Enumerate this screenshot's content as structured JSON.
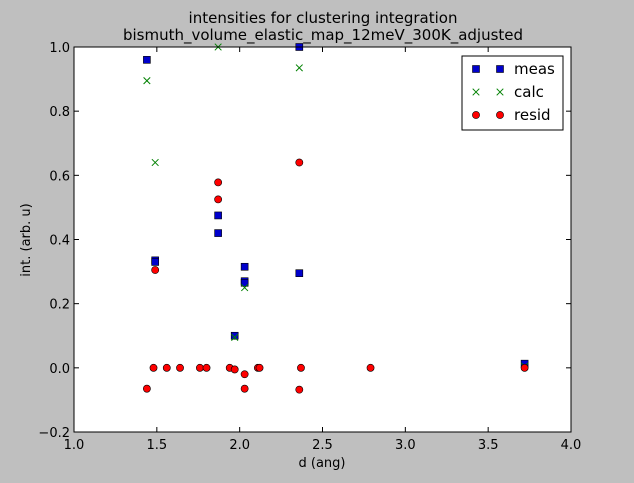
{
  "chart_data": {
    "type": "scatter",
    "title": "intensities for clustering integration",
    "subtitle": "bismuth_volume_elastic_map_12meV_300K_adjusted",
    "xlabel": "d (ang)",
    "ylabel": "int. (arb. u)",
    "xlim": [
      1.0,
      4.0
    ],
    "ylim": [
      -0.2,
      1.0
    ],
    "xticks": [
      "1.0",
      "1.5",
      "2.0",
      "2.5",
      "3.0",
      "3.5",
      "4.0"
    ],
    "yticks": [
      "−0.2",
      "0.0",
      "0.2",
      "0.4",
      "0.6",
      "0.8",
      "1.0"
    ],
    "xtick_values": [
      1.0,
      1.5,
      2.0,
      2.5,
      3.0,
      3.5,
      4.0
    ],
    "ytick_values": [
      -0.2,
      0.0,
      0.2,
      0.4,
      0.6,
      0.8,
      1.0
    ],
    "grid": false,
    "legend_position": "top-right",
    "series": [
      {
        "name": "meas",
        "marker": "square",
        "color": "#0000cc",
        "points": [
          [
            1.44,
            0.96
          ],
          [
            1.49,
            0.335
          ],
          [
            1.49,
            0.33
          ],
          [
            1.87,
            0.475
          ],
          [
            1.87,
            0.42
          ],
          [
            1.97,
            0.1
          ],
          [
            2.03,
            0.315
          ],
          [
            2.03,
            0.27
          ],
          [
            2.03,
            0.265
          ],
          [
            2.36,
            1.0
          ],
          [
            2.36,
            0.295
          ],
          [
            3.72,
            0.013
          ]
        ]
      },
      {
        "name": "calc",
        "marker": "x",
        "color": "#008000",
        "points": [
          [
            1.44,
            0.895
          ],
          [
            1.49,
            0.64
          ],
          [
            1.87,
            1.0
          ],
          [
            1.97,
            0.095
          ],
          [
            2.03,
            0.25
          ],
          [
            2.36,
            0.935
          ],
          [
            3.72,
            0.005
          ]
        ]
      },
      {
        "name": "resid",
        "marker": "circle",
        "color": "#ff0000",
        "points": [
          [
            1.44,
            -0.065
          ],
          [
            1.48,
            0.0
          ],
          [
            1.49,
            0.305
          ],
          [
            1.56,
            0.0
          ],
          [
            1.64,
            0.0
          ],
          [
            1.76,
            0.0
          ],
          [
            1.8,
            0.0
          ],
          [
            1.87,
            0.578
          ],
          [
            1.87,
            0.525
          ],
          [
            1.94,
            0.0
          ],
          [
            1.97,
            -0.005
          ],
          [
            2.03,
            -0.02
          ],
          [
            2.03,
            -0.065
          ],
          [
            2.11,
            0.0
          ],
          [
            2.12,
            0.0
          ],
          [
            2.36,
            0.64
          ],
          [
            2.36,
            -0.068
          ],
          [
            2.37,
            0.0
          ],
          [
            2.79,
            0.0
          ],
          [
            3.72,
            0.0
          ]
        ]
      }
    ]
  }
}
